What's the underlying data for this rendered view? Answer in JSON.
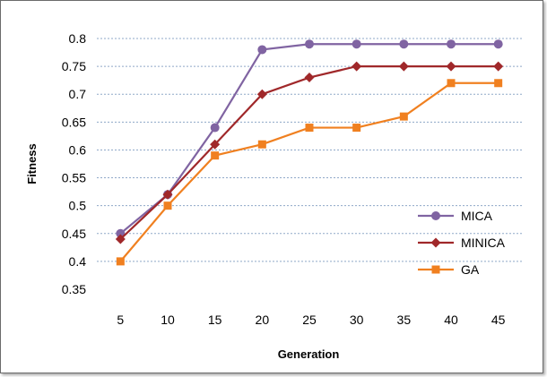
{
  "chart_data": {
    "type": "line",
    "title": "",
    "xlabel": "Generation",
    "ylabel": "Fitness",
    "x": [
      5,
      10,
      15,
      20,
      25,
      30,
      35,
      40,
      45
    ],
    "ylim": [
      0.35,
      0.8
    ],
    "yticks": [
      "0.35",
      "0.4",
      "0.45",
      "0.5",
      "0.55",
      "0.6",
      "0.65",
      "0.7",
      "0.75",
      "0.8"
    ],
    "xticks": [
      "5",
      "10",
      "15",
      "20",
      "25",
      "30",
      "35",
      "40",
      "45"
    ],
    "grid": "horizontal",
    "legend": "right",
    "series": [
      {
        "name": "MICA",
        "color": "#8064a2",
        "marker": "circle",
        "values": [
          0.45,
          0.52,
          0.64,
          0.78,
          0.79,
          0.79,
          0.79,
          0.79,
          0.79
        ]
      },
      {
        "name": "MINICA",
        "color": "#a0282a",
        "marker": "diamond",
        "values": [
          0.44,
          0.52,
          0.61,
          0.7,
          0.73,
          0.75,
          0.75,
          0.75,
          0.75
        ]
      },
      {
        "name": "GA",
        "color": "#f08020",
        "marker": "square",
        "values": [
          0.4,
          0.5,
          0.59,
          0.61,
          0.64,
          0.64,
          0.66,
          0.72,
          0.72
        ]
      }
    ]
  }
}
